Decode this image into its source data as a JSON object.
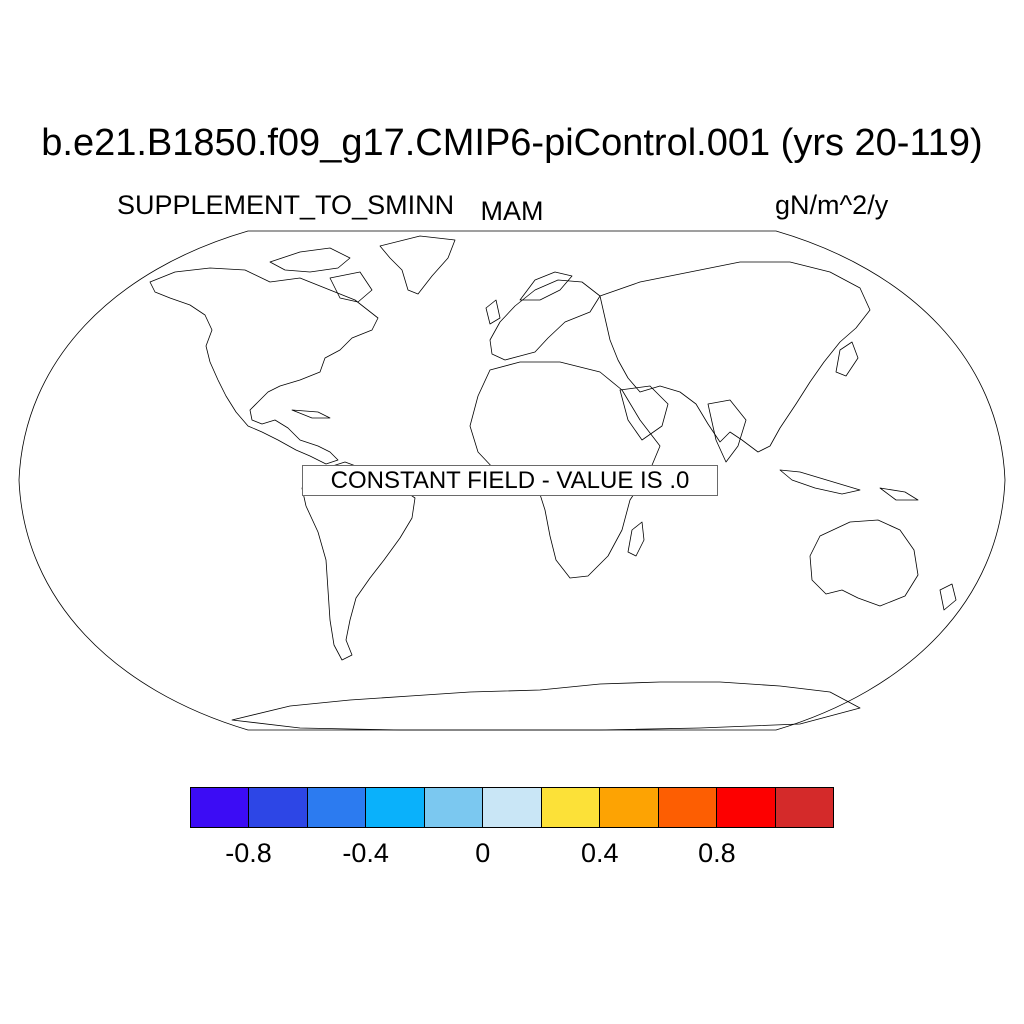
{
  "title": "b.e21.B1850.f09_g17.CMIP6-piControl.001 (yrs 20-119)",
  "left_label": "SUPPLEMENT_TO_SMINN",
  "center_label": "MAM",
  "right_label": "gN/m^2/y",
  "notice": "CONSTANT FIELD - VALUE IS .0",
  "projection": "Robinson",
  "colorbar": {
    "colors": [
      "#3c0cf5",
      "#2d46e6",
      "#2c7bf0",
      "#0ab1fb",
      "#7bc8f0",
      "#c9e6f6",
      "#fce138",
      "#fda303",
      "#fd5e02",
      "#fd0000",
      "#d42a2a"
    ],
    "labels": [
      "-0.8",
      "-0.4",
      "0",
      "0.4",
      "0.8"
    ]
  }
}
